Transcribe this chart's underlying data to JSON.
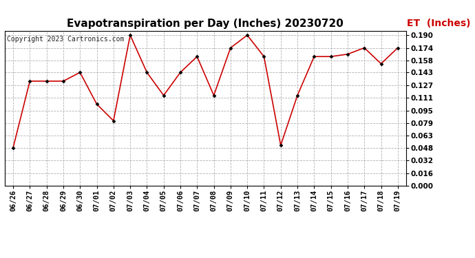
{
  "title": "Evapotranspiration per Day (Inches) 20230720",
  "copyright": "Copyright 2023 Cartronics.com",
  "legend_label": "ET  (Inches)",
  "dates": [
    "06/26",
    "06/27",
    "06/28",
    "06/29",
    "06/30",
    "07/01",
    "07/02",
    "07/03",
    "07/04",
    "07/05",
    "07/06",
    "07/07",
    "07/08",
    "07/09",
    "07/10",
    "07/11",
    "07/12",
    "07/13",
    "07/14",
    "07/15",
    "07/16",
    "07/17",
    "07/18",
    "07/19"
  ],
  "values": [
    0.048,
    0.132,
    0.132,
    0.132,
    0.143,
    0.103,
    0.082,
    0.19,
    0.143,
    0.114,
    0.143,
    0.163,
    0.114,
    0.174,
    0.19,
    0.163,
    0.051,
    0.114,
    0.163,
    0.163,
    0.166,
    0.174,
    0.154,
    0.174
  ],
  "line_color": "#cc0000",
  "marker_color": "#000000",
  "grid_color": "#b0b0b0",
  "background_color": "#ffffff",
  "ylim": [
    0.0,
    0.1953
  ],
  "yticks": [
    0.0,
    0.016,
    0.032,
    0.048,
    0.063,
    0.079,
    0.095,
    0.111,
    0.127,
    0.143,
    0.158,
    0.174,
    0.19
  ],
  "title_fontsize": 11,
  "copyright_fontsize": 7,
  "legend_fontsize": 10,
  "tick_fontsize": 7.5
}
